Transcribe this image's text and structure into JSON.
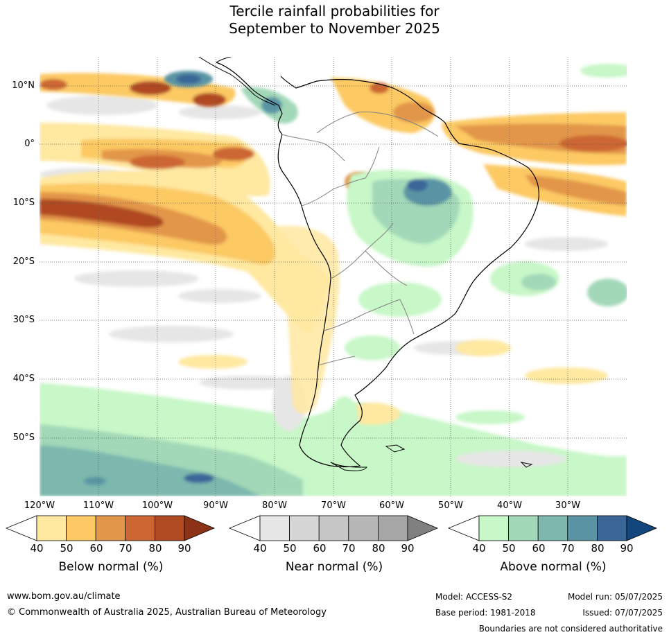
{
  "title": {
    "line1": "Tercile rainfall probabilities for",
    "line2": "September to November 2025"
  },
  "map": {
    "lat_labels": [
      "10°N",
      "0°",
      "10°S",
      "20°S",
      "30°S",
      "40°S",
      "50°S"
    ],
    "lon_labels": [
      "120°W",
      "110°W",
      "100°W",
      "90°W",
      "80°W",
      "70°W",
      "60°W",
      "50°W",
      "40°W",
      "30°W"
    ],
    "gridlines": true,
    "below_normal_colors": [
      "#ffffff",
      "#ffe8a0",
      "#fcc964",
      "#e29649",
      "#cc6633",
      "#b04a22",
      "#8c3317"
    ],
    "near_normal_colors": [
      "#ffffff",
      "#e6e6e6",
      "#d6d6d6",
      "#c6c6c6",
      "#b6b6b6",
      "#a6a6a6",
      "#808080"
    ],
    "above_normal_colors": [
      "#ffffff",
      "#c8f7c8",
      "#a2d8b8",
      "#7cb8ad",
      "#5a94a4",
      "#3a6698",
      "#12467c"
    ]
  },
  "colorbars": [
    {
      "name": "Below normal (%)",
      "ticks": [
        "40",
        "50",
        "60",
        "70",
        "80",
        "90"
      ]
    },
    {
      "name": "Near normal (%)",
      "ticks": [
        "40",
        "50",
        "60",
        "70",
        "80",
        "90"
      ]
    },
    {
      "name": "Above normal (%)",
      "ticks": [
        "40",
        "50",
        "60",
        "70",
        "80",
        "90"
      ]
    }
  ],
  "footer": {
    "website": "www.bom.gov.au/climate",
    "copyright": "© Commonwealth of Australia 2025, Australian Bureau of Meteorology",
    "model": "Model: ACCESS-S2",
    "model_run": "Model run: 05/07/2025",
    "base_period": "Base period: 1981-2018",
    "issued": "Issued: 07/07/2025",
    "disclaimer": "Boundaries are not considered authoritative"
  }
}
